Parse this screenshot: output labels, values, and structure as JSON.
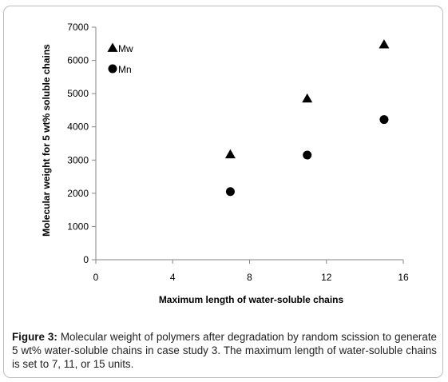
{
  "chart_data": {
    "type": "scatter",
    "xlabel": "Maximum length of water-soluble chains",
    "ylabel": "Molecular weight for 5 wt% soluble chains",
    "xlim": [
      0,
      16
    ],
    "ylim": [
      0,
      7000
    ],
    "x_ticks": [
      0,
      4,
      8,
      12,
      16
    ],
    "y_ticks": [
      0,
      1000,
      2000,
      3000,
      4000,
      5000,
      6000,
      7000
    ],
    "grid": false,
    "legend_position": "top-left",
    "series": [
      {
        "name": "Mw",
        "marker": "triangle",
        "color": "#000000",
        "x": [
          7,
          11,
          15
        ],
        "y": [
          3170,
          4850,
          6480
        ]
      },
      {
        "name": "Mn",
        "marker": "circle",
        "color": "#000000",
        "x": [
          7,
          11,
          15
        ],
        "y": [
          2050,
          3150,
          4220
        ]
      }
    ]
  },
  "caption": {
    "label": "Figure 3:",
    "text": " Molecular weight of polymers after degradation by random scission to generate 5 wt% water-soluble chains in case study 3. The maximum length of water-soluble chains is set to 7, 11, or 15 units."
  }
}
